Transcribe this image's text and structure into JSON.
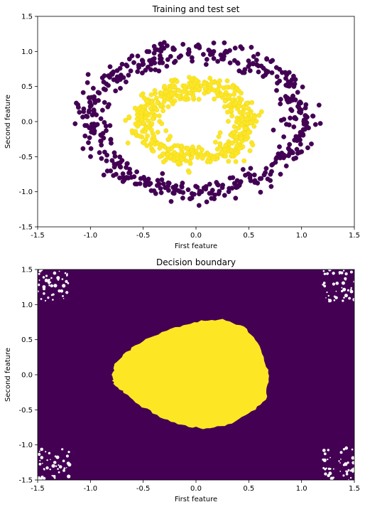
{
  "colors": {
    "class0": "#440154",
    "class1": "#fde725",
    "class0_edge": "#3b0150",
    "class1_edge": "#e8d21a"
  },
  "chart_data": [
    {
      "type": "scatter",
      "title": "Training and test set",
      "xlabel": "First feature",
      "ylabel": "Second feature",
      "xlim": [
        -1.5,
        1.5
      ],
      "ylim": [
        -1.5,
        1.5
      ],
      "xticks": [
        "-1.5",
        "-1.0",
        "-0.5",
        "0.0",
        "0.5",
        "1.0",
        "1.5"
      ],
      "yticks": [
        "-1.5",
        "-1.0",
        "-0.5",
        "0.0",
        "0.5",
        "1.0",
        "1.5"
      ],
      "grid": false,
      "series": [
        {
          "class": 0,
          "color": "#440154",
          "count": 500,
          "distribution": "ring",
          "radius_mean": 1.0,
          "radius_noise": 0.08
        },
        {
          "class": 1,
          "color": "#fde725",
          "count": 500,
          "distribution": "ring",
          "radius_mean": 0.5,
          "radius_noise": 0.08
        }
      ]
    },
    {
      "type": "heatmap",
      "title": "Decision boundary",
      "xlabel": "First feature",
      "ylabel": "Second feature",
      "xlim": [
        -1.5,
        1.5
      ],
      "ylim": [
        -1.5,
        1.5
      ],
      "xticks": [
        "-1.5",
        "-1.0",
        "-0.5",
        "0.0",
        "0.5",
        "1.0",
        "1.5"
      ],
      "yticks": [
        "-1.5",
        "-1.0",
        "-0.5",
        "0.0",
        "0.5",
        "1.0",
        "1.5"
      ],
      "grid": false,
      "background_class_color": "#440154",
      "region_class_color": "#fde725",
      "region_boundary": [
        [
          -0.78,
          0.0
        ],
        [
          -0.75,
          0.18
        ],
        [
          -0.6,
          0.38
        ],
        [
          -0.4,
          0.55
        ],
        [
          -0.15,
          0.68
        ],
        [
          0.05,
          0.76
        ],
        [
          0.25,
          0.78
        ],
        [
          0.45,
          0.68
        ],
        [
          0.58,
          0.45
        ],
        [
          0.66,
          0.15
        ],
        [
          0.68,
          -0.1
        ],
        [
          0.66,
          -0.35
        ],
        [
          0.5,
          -0.55
        ],
        [
          0.3,
          -0.7
        ],
        [
          0.1,
          -0.76
        ],
        [
          -0.1,
          -0.72
        ],
        [
          -0.3,
          -0.62
        ],
        [
          -0.5,
          -0.45
        ],
        [
          -0.68,
          -0.25
        ],
        [
          -0.78,
          -0.1
        ]
      ]
    }
  ]
}
